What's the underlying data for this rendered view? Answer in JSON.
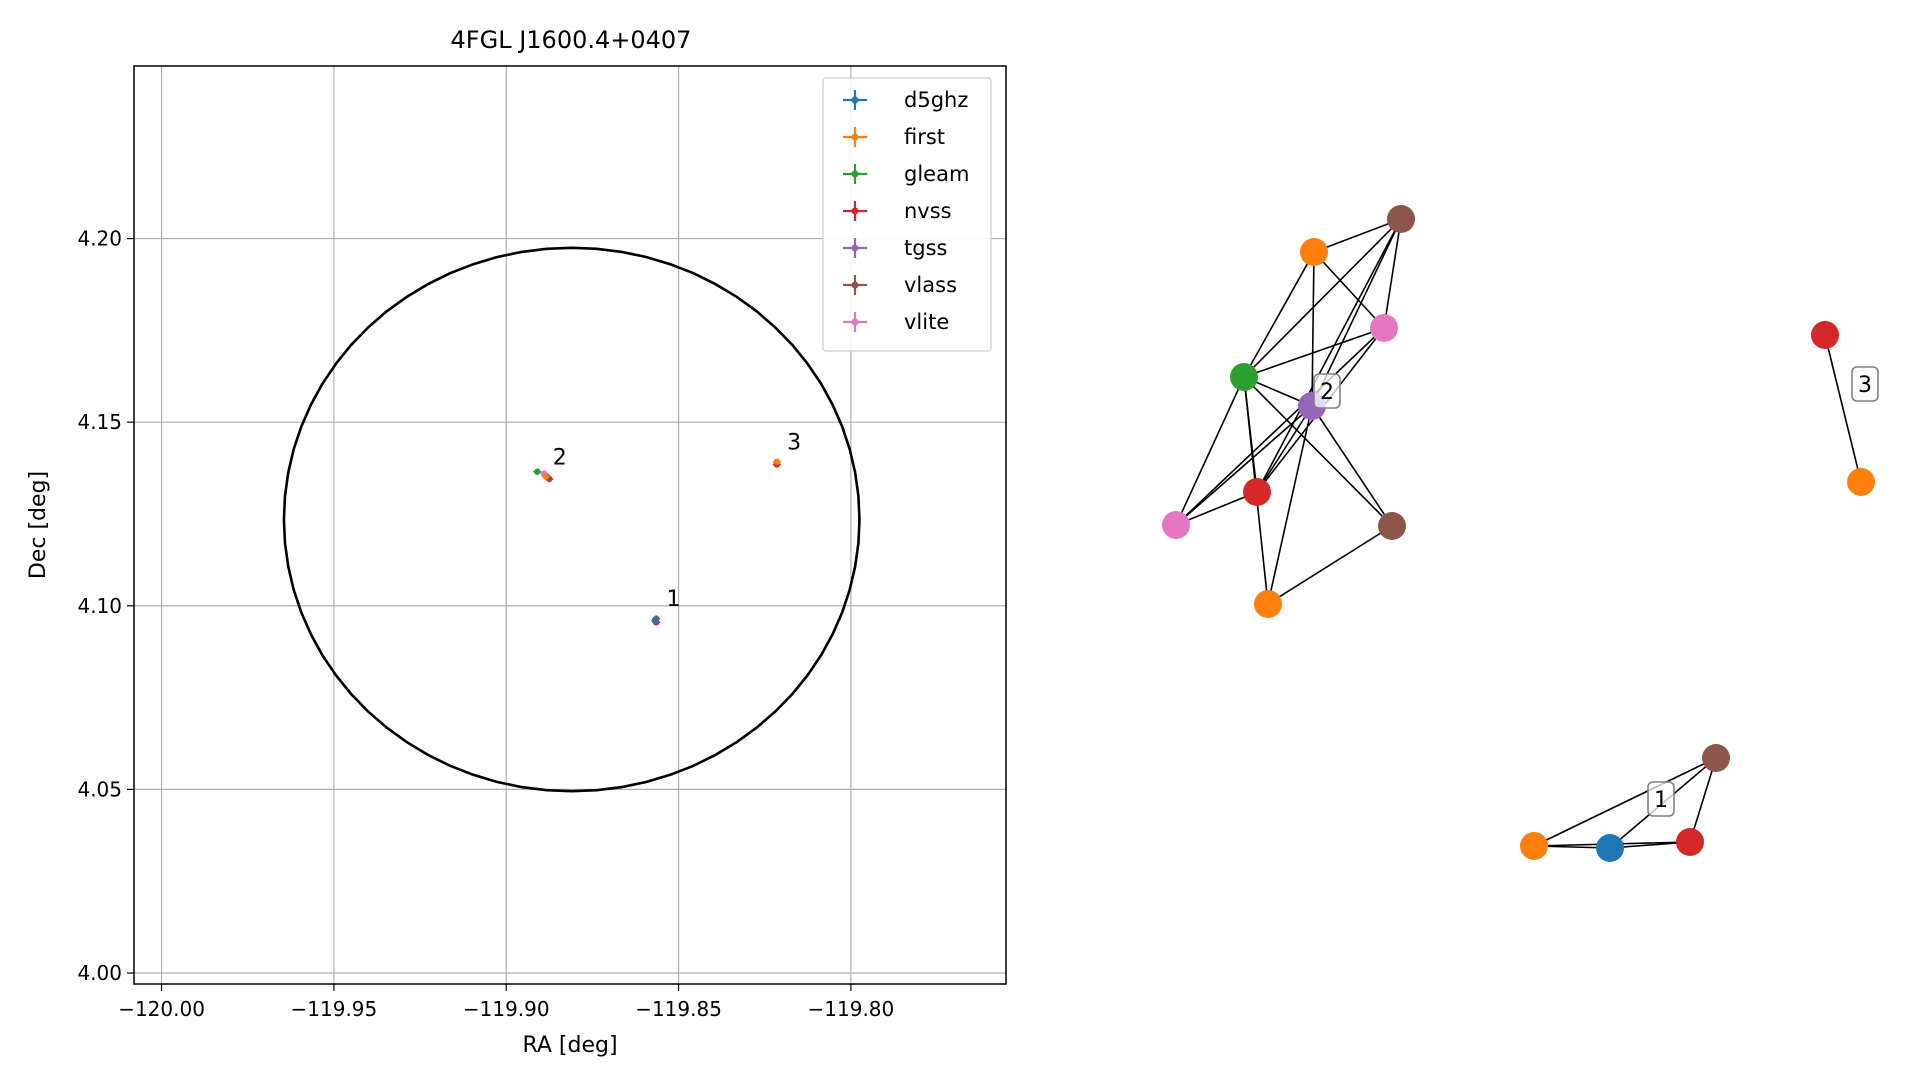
{
  "colors": {
    "d5ghz": "#1f77b4",
    "first": "#ff7f0e",
    "gleam": "#2ca02c",
    "nvss": "#d62728",
    "tgss": "#9467bd",
    "vlass": "#8c564b",
    "vlite": "#e377c2",
    "grid": "#b0b0b0",
    "ink": "#000000"
  },
  "chart_data": [
    {
      "type": "scatter",
      "title": "4FGL J1600.4+0407",
      "xlabel": "RA [deg]",
      "ylabel": "Dec [deg]",
      "xlim": [
        -120.008,
        -119.755
      ],
      "ylim": [
        3.997,
        4.247
      ],
      "xticks": [
        -120.0,
        -119.95,
        -119.9,
        -119.85,
        -119.8
      ],
      "xtick_labels": [
        "−120.00",
        "−119.95",
        "−119.90",
        "−119.85",
        "−119.80"
      ],
      "yticks": [
        4.0,
        4.05,
        4.1,
        4.15,
        4.2
      ],
      "ytick_labels": [
        "4.00",
        "4.05",
        "4.10",
        "4.15",
        "4.20"
      ],
      "grid": true,
      "legend_position": "top-right",
      "legend": [
        "d5ghz",
        "first",
        "gleam",
        "nvss",
        "tgss",
        "vlass",
        "vlite"
      ],
      "ellipse": {
        "center": [
          -119.881,
          4.1235
        ],
        "semi_axis_ra": 0.0835,
        "semi_axis_dec": 0.074
      },
      "series": [
        {
          "name": "gleam",
          "points": [
            [
              -119.891,
              4.1365
            ]
          ]
        },
        {
          "name": "tgss",
          "points": [
            [
              -119.8885,
              4.1355
            ]
          ]
        },
        {
          "name": "vlite",
          "points": [
            [
              -119.889,
              4.136
            ]
          ]
        },
        {
          "name": "vlass",
          "points": [
            [
              -119.8875,
              4.1345
            ],
            [
              -119.8565,
              4.0965
            ]
          ]
        },
        {
          "name": "nvss",
          "points": [
            [
              -119.888,
              4.135
            ],
            [
              -119.8565,
              4.0955
            ],
            [
              -119.8215,
              4.1385
            ]
          ]
        },
        {
          "name": "first",
          "points": [
            [
              -119.8885,
              4.1352
            ],
            [
              -119.8215,
              4.1392
            ]
          ]
        },
        {
          "name": "d5ghz",
          "points": [
            [
              -119.8568,
              4.096
            ]
          ]
        }
      ],
      "annotations": [
        {
          "text": "1",
          "x": -119.8535,
          "y": 4.1
        },
        {
          "text": "2",
          "x": -119.8865,
          "y": 4.1385
        },
        {
          "text": "3",
          "x": -119.8185,
          "y": 4.1425
        }
      ]
    },
    {
      "type": "network",
      "nodes": [
        {
          "id": "c2-vlass-a",
          "survey": "vlass"
        },
        {
          "id": "c2-first-a",
          "survey": "first"
        },
        {
          "id": "c2-vlite-a",
          "survey": "vlite"
        },
        {
          "id": "c2-gleam",
          "survey": "gleam"
        },
        {
          "id": "c2-tgss",
          "survey": "tgss"
        },
        {
          "id": "c2-nvss",
          "survey": "nvss"
        },
        {
          "id": "c2-vlite-b",
          "survey": "vlite"
        },
        {
          "id": "c2-vlass-b",
          "survey": "vlass"
        },
        {
          "id": "c2-first-b",
          "survey": "first"
        },
        {
          "id": "c3-nvss",
          "survey": "nvss"
        },
        {
          "id": "c3-first",
          "survey": "first"
        },
        {
          "id": "c1-vlass",
          "survey": "vlass"
        },
        {
          "id": "c1-first",
          "survey": "first"
        },
        {
          "id": "c1-d5ghz",
          "survey": "d5ghz"
        },
        {
          "id": "c1-nvss",
          "survey": "nvss"
        }
      ],
      "edges": [
        [
          "c2-vlass-a",
          "c2-first-a"
        ],
        [
          "c2-vlass-a",
          "c2-gleam"
        ],
        [
          "c2-vlass-a",
          "c2-vlite-a"
        ],
        [
          "c2-vlass-a",
          "c2-tgss"
        ],
        [
          "c2-vlass-a",
          "c2-nvss"
        ],
        [
          "c2-first-a",
          "c2-gleam"
        ],
        [
          "c2-first-a",
          "c2-vlite-a"
        ],
        [
          "c2-first-a",
          "c2-tgss"
        ],
        [
          "c2-gleam",
          "c2-vlite-a"
        ],
        [
          "c2-gleam",
          "c2-tgss"
        ],
        [
          "c2-gleam",
          "c2-nvss"
        ],
        [
          "c2-gleam",
          "c2-vlite-b"
        ],
        [
          "c2-gleam",
          "c2-vlass-b"
        ],
        [
          "c2-gleam",
          "c2-first-b"
        ],
        [
          "c2-vlite-a",
          "c2-nvss"
        ],
        [
          "c2-vlite-a",
          "c2-vlite-b"
        ],
        [
          "c2-tgss",
          "c2-nvss"
        ],
        [
          "c2-tgss",
          "c2-vlite-b"
        ],
        [
          "c2-tgss",
          "c2-vlass-b"
        ],
        [
          "c2-tgss",
          "c2-first-b"
        ],
        [
          "c2-nvss",
          "c2-vlite-b"
        ],
        [
          "c2-vlass-b",
          "c2-first-b"
        ],
        [
          "c3-nvss",
          "c3-first"
        ],
        [
          "c1-vlass",
          "c1-first"
        ],
        [
          "c1-vlass",
          "c1-d5ghz"
        ],
        [
          "c1-vlass",
          "c1-nvss"
        ],
        [
          "c1-first",
          "c1-d5ghz"
        ],
        [
          "c1-first",
          "c1-nvss"
        ],
        [
          "c1-d5ghz",
          "c1-nvss"
        ]
      ],
      "cluster_labels": [
        "2",
        "3",
        "1"
      ]
    }
  ]
}
